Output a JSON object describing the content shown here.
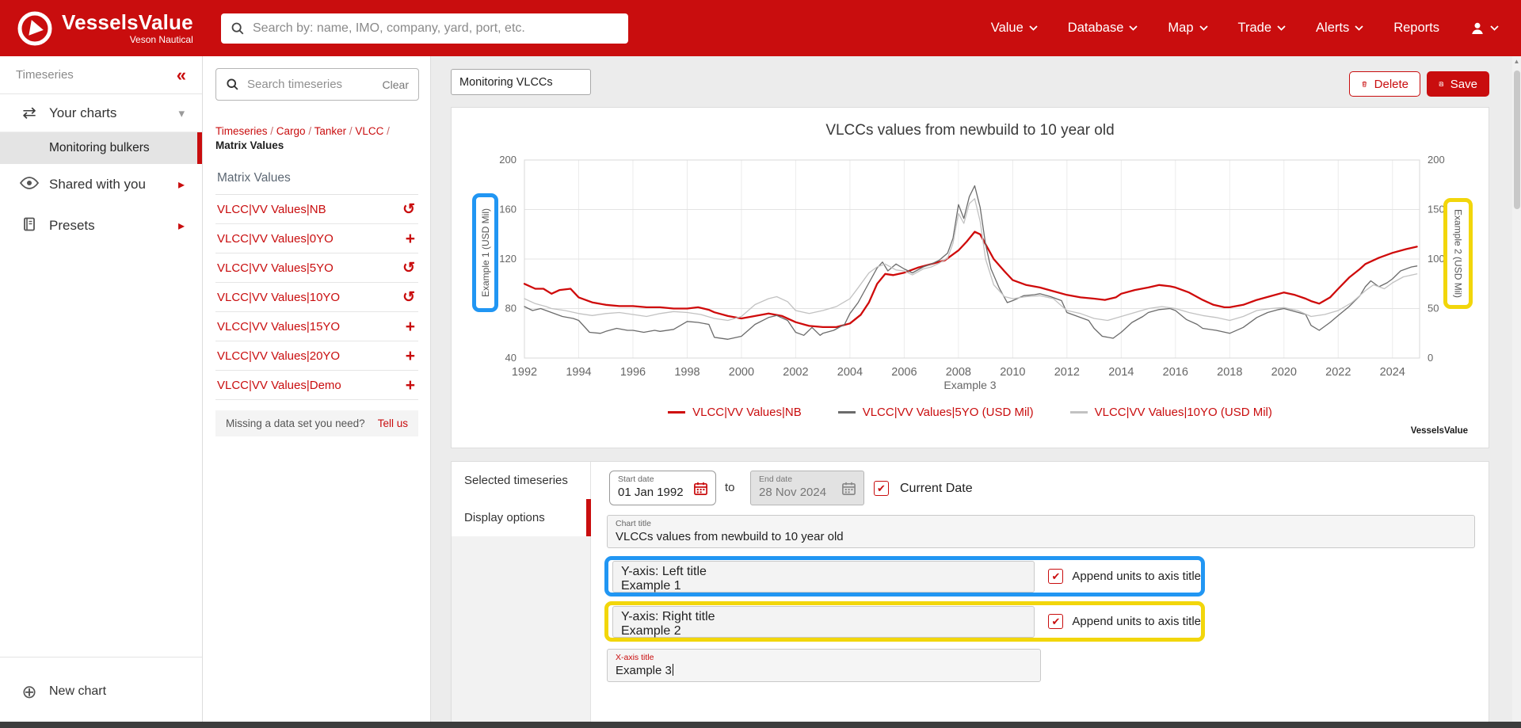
{
  "navbar": {
    "logo_title": "VesselsValue",
    "logo_subtitle": "Veson Nautical",
    "search_placeholder": "Search by: name, IMO, company, yard, port, etc.",
    "items": [
      {
        "label": "Value",
        "chevron": true
      },
      {
        "label": "Database",
        "chevron": true
      },
      {
        "label": "Map",
        "chevron": true
      },
      {
        "label": "Trade",
        "chevron": true
      },
      {
        "label": "Alerts",
        "chevron": true
      },
      {
        "label": "Reports",
        "chevron": false
      }
    ]
  },
  "sidebar": {
    "header": "Timeseries",
    "collapse_glyph": "«",
    "your_charts": "Your charts",
    "selected_chart": "Monitoring bulkers",
    "shared_with_you": "Shared with you",
    "presets": "Presets",
    "new_chart": "New chart",
    "new_chart_glyph": "⊕",
    "swap_glyph": "⇄",
    "caret_down": "▾",
    "caret_right": "▸"
  },
  "series_panel": {
    "search_placeholder": "Search timeseries",
    "clear_label": "Clear",
    "breadcrumb": [
      "Timeseries",
      "Cargo",
      "Tanker",
      "VLCC"
    ],
    "breadcrumb_current": "Matrix Values",
    "group_label": "Matrix Values",
    "items": [
      {
        "label": "VLCC|VV Values|NB",
        "action": "restore"
      },
      {
        "label": "VLCC|VV Values|0YO",
        "action": "add"
      },
      {
        "label": "VLCC|VV Values|5YO",
        "action": "restore"
      },
      {
        "label": "VLCC|VV Values|10YO",
        "action": "restore"
      },
      {
        "label": "VLCC|VV Values|15YO",
        "action": "add"
      },
      {
        "label": "VLCC|VV Values|20YO",
        "action": "add"
      },
      {
        "label": "VLCC|VV Values|Demo",
        "action": "add"
      }
    ],
    "restore_glyph": "↺",
    "add_glyph": "+",
    "missing_text": "Missing a data set you need?",
    "tell_us": "Tell us"
  },
  "toolbar": {
    "chart_name": "Monitoring VLCCs",
    "delete_label": "Delete",
    "save_label": "Save"
  },
  "chart_card": {
    "watermark": "VesselsValue"
  },
  "chart_data": {
    "type": "line",
    "title": "VLCCs values from newbuild to 10 year old",
    "xlabel": "Example 3",
    "ylabel_left": "Example 1 (USD Mil)",
    "ylabel_right": "Example 2 (USD Mil)",
    "x_range": [
      1992,
      2025
    ],
    "x_ticks": [
      1992,
      1994,
      1996,
      1998,
      2000,
      2002,
      2004,
      2006,
      2008,
      2010,
      2012,
      2014,
      2016,
      2018,
      2020,
      2022,
      2024
    ],
    "left_range": [
      40,
      200
    ],
    "left_ticks": [
      40,
      80,
      120,
      160,
      200
    ],
    "right_range": [
      0,
      200
    ],
    "right_ticks": [
      0,
      50,
      100,
      150,
      200
    ],
    "grid": true,
    "legend_position": "bottom",
    "series": [
      {
        "name": "VLCC|VV Values|NB",
        "color": "#cf0a0a",
        "width": 2.3,
        "axis": "left",
        "points": [
          [
            1992,
            100
          ],
          [
            1992.4,
            96
          ],
          [
            1992.7,
            96
          ],
          [
            1993,
            92
          ],
          [
            1993.3,
            95
          ],
          [
            1993.7,
            96
          ],
          [
            1994,
            89
          ],
          [
            1994.5,
            85
          ],
          [
            1995,
            83
          ],
          [
            1995.5,
            82
          ],
          [
            1996,
            82
          ],
          [
            1996.5,
            81
          ],
          [
            1997,
            81
          ],
          [
            1997.5,
            80
          ],
          [
            1998,
            80
          ],
          [
            1998.4,
            81
          ],
          [
            1998.8,
            79
          ],
          [
            1999,
            77
          ],
          [
            1999.5,
            74
          ],
          [
            2000,
            72
          ],
          [
            2000.5,
            74
          ],
          [
            2001,
            76
          ],
          [
            2001.5,
            74
          ],
          [
            2002,
            69
          ],
          [
            2002.5,
            66
          ],
          [
            2003,
            65
          ],
          [
            2003.5,
            65
          ],
          [
            2004,
            68
          ],
          [
            2004.4,
            75
          ],
          [
            2004.7,
            85
          ],
          [
            2005,
            100
          ],
          [
            2005.3,
            108
          ],
          [
            2005.6,
            107
          ],
          [
            2006,
            109
          ],
          [
            2006.5,
            113
          ],
          [
            2007,
            116
          ],
          [
            2007.5,
            119
          ],
          [
            2008,
            127
          ],
          [
            2008.3,
            134
          ],
          [
            2008.6,
            142
          ],
          [
            2008.8,
            140
          ],
          [
            2009,
            132
          ],
          [
            2009.3,
            120
          ],
          [
            2009.7,
            110
          ],
          [
            2010,
            103
          ],
          [
            2010.5,
            99
          ],
          [
            2011,
            97
          ],
          [
            2011.5,
            94
          ],
          [
            2012,
            91
          ],
          [
            2012.5,
            89
          ],
          [
            2013,
            88
          ],
          [
            2013.4,
            87
          ],
          [
            2013.8,
            89
          ],
          [
            2014,
            92
          ],
          [
            2014.5,
            95
          ],
          [
            2015,
            97
          ],
          [
            2015.4,
            99
          ],
          [
            2015.8,
            98
          ],
          [
            2016,
            97
          ],
          [
            2016.5,
            93
          ],
          [
            2017,
            87
          ],
          [
            2017.4,
            83
          ],
          [
            2017.8,
            81
          ],
          [
            2018,
            81
          ],
          [
            2018.5,
            83
          ],
          [
            2019,
            87
          ],
          [
            2019.5,
            90
          ],
          [
            2020,
            93
          ],
          [
            2020.4,
            91
          ],
          [
            2020.8,
            88
          ],
          [
            2021,
            86
          ],
          [
            2021.3,
            84
          ],
          [
            2021.7,
            89
          ],
          [
            2022,
            96
          ],
          [
            2022.4,
            105
          ],
          [
            2022.8,
            112
          ],
          [
            2023,
            116
          ],
          [
            2023.5,
            121
          ],
          [
            2024,
            125
          ],
          [
            2024.5,
            128
          ],
          [
            2024.9,
            130
          ]
        ]
      },
      {
        "name": "VLCC|VV Values|5YO (USD Mil)",
        "color": "#6b6b6b",
        "width": 1.3,
        "axis": "right",
        "points": [
          [
            1992,
            52
          ],
          [
            1992.3,
            48
          ],
          [
            1992.6,
            50
          ],
          [
            1993,
            46
          ],
          [
            1993.4,
            42
          ],
          [
            1993.8,
            40
          ],
          [
            1994,
            38
          ],
          [
            1994.4,
            26
          ],
          [
            1994.8,
            25
          ],
          [
            1995,
            27
          ],
          [
            1995.4,
            30
          ],
          [
            1995.8,
            28
          ],
          [
            1996,
            28
          ],
          [
            1996.4,
            26
          ],
          [
            1996.8,
            28
          ],
          [
            1997,
            27
          ],
          [
            1997.5,
            29
          ],
          [
            1998,
            37
          ],
          [
            1998.4,
            36
          ],
          [
            1998.8,
            34
          ],
          [
            1999,
            21
          ],
          [
            1999.5,
            19
          ],
          [
            2000,
            22
          ],
          [
            2000.5,
            34
          ],
          [
            2001,
            41
          ],
          [
            2001.3,
            43
          ],
          [
            2001.7,
            38
          ],
          [
            2002,
            26
          ],
          [
            2002.3,
            23
          ],
          [
            2002.6,
            31
          ],
          [
            2002.9,
            23
          ],
          [
            2003,
            25
          ],
          [
            2003.4,
            28
          ],
          [
            2003.8,
            34
          ],
          [
            2004,
            45
          ],
          [
            2004.3,
            56
          ],
          [
            2004.7,
            76
          ],
          [
            2005,
            91
          ],
          [
            2005.2,
            97
          ],
          [
            2005.4,
            88
          ],
          [
            2005.7,
            95
          ],
          [
            2006,
            90
          ],
          [
            2006.3,
            86
          ],
          [
            2006.7,
            92
          ],
          [
            2007,
            95
          ],
          [
            2007.3,
            99
          ],
          [
            2007.6,
            106
          ],
          [
            2007.8,
            121
          ],
          [
            2008,
            155
          ],
          [
            2008.2,
            141
          ],
          [
            2008.4,
            163
          ],
          [
            2008.6,
            174
          ],
          [
            2008.8,
            152
          ],
          [
            2009,
            115
          ],
          [
            2009.2,
            90
          ],
          [
            2009.5,
            71
          ],
          [
            2009.8,
            56
          ],
          [
            2010,
            58
          ],
          [
            2010.4,
            63
          ],
          [
            2010.8,
            64
          ],
          [
            2011,
            65
          ],
          [
            2011.4,
            62
          ],
          [
            2011.8,
            58
          ],
          [
            2012,
            46
          ],
          [
            2012.4,
            42
          ],
          [
            2012.8,
            38
          ],
          [
            2013,
            30
          ],
          [
            2013.3,
            22
          ],
          [
            2013.7,
            20
          ],
          [
            2014,
            26
          ],
          [
            2014.4,
            36
          ],
          [
            2014.8,
            42
          ],
          [
            2015,
            46
          ],
          [
            2015.4,
            49
          ],
          [
            2015.8,
            50
          ],
          [
            2016,
            48
          ],
          [
            2016.4,
            39
          ],
          [
            2016.8,
            34
          ],
          [
            2017,
            30
          ],
          [
            2017.5,
            28
          ],
          [
            2018,
            25
          ],
          [
            2018.5,
            31
          ],
          [
            2019,
            41
          ],
          [
            2019.4,
            46
          ],
          [
            2019.8,
            49
          ],
          [
            2020,
            50
          ],
          [
            2020.4,
            47
          ],
          [
            2020.8,
            44
          ],
          [
            2021,
            33
          ],
          [
            2021.3,
            28
          ],
          [
            2021.7,
            36
          ],
          [
            2022,
            43
          ],
          [
            2022.4,
            52
          ],
          [
            2022.8,
            63
          ],
          [
            2023,
            72
          ],
          [
            2023.2,
            78
          ],
          [
            2023.5,
            72
          ],
          [
            2023.8,
            76
          ],
          [
            2024,
            80
          ],
          [
            2024.3,
            88
          ],
          [
            2024.7,
            92
          ],
          [
            2024.9,
            93
          ]
        ]
      },
      {
        "name": "VLCC|VV Values|10YO (USD Mil)",
        "color": "#c2c2c2",
        "width": 1.3,
        "axis": "right",
        "points": [
          [
            1992,
            60
          ],
          [
            1992.4,
            55
          ],
          [
            1992.8,
            52
          ],
          [
            1993,
            50
          ],
          [
            1993.5,
            48
          ],
          [
            1994,
            45
          ],
          [
            1994.5,
            43
          ],
          [
            1995,
            45
          ],
          [
            1995.5,
            46
          ],
          [
            1996,
            44
          ],
          [
            1996.5,
            42
          ],
          [
            1997,
            45
          ],
          [
            1997.5,
            47
          ],
          [
            1998,
            46
          ],
          [
            1998.5,
            44
          ],
          [
            1999,
            40
          ],
          [
            1999.5,
            38
          ],
          [
            2000,
            42
          ],
          [
            2000.5,
            54
          ],
          [
            2001,
            60
          ],
          [
            2001.3,
            62
          ],
          [
            2001.7,
            57
          ],
          [
            2002,
            48
          ],
          [
            2002.5,
            45
          ],
          [
            2003,
            48
          ],
          [
            2003.5,
            52
          ],
          [
            2004,
            60
          ],
          [
            2004.3,
            71
          ],
          [
            2004.7,
            86
          ],
          [
            2005,
            92
          ],
          [
            2005.3,
            95
          ],
          [
            2005.7,
            89
          ],
          [
            2006,
            88
          ],
          [
            2006.3,
            84
          ],
          [
            2006.7,
            90
          ],
          [
            2007,
            92
          ],
          [
            2007.3,
            96
          ],
          [
            2007.6,
            101
          ],
          [
            2007.8,
            116
          ],
          [
            2008,
            146
          ],
          [
            2008.2,
            136
          ],
          [
            2008.4,
            156
          ],
          [
            2008.6,
            161
          ],
          [
            2008.8,
            138
          ],
          [
            2009,
            100
          ],
          [
            2009.3,
            74
          ],
          [
            2009.7,
            62
          ],
          [
            2010,
            60
          ],
          [
            2010.5,
            62
          ],
          [
            2011,
            63
          ],
          [
            2011.5,
            60
          ],
          [
            2012,
            48
          ],
          [
            2012.5,
            45
          ],
          [
            2013,
            40
          ],
          [
            2013.5,
            38
          ],
          [
            2014,
            42
          ],
          [
            2014.5,
            46
          ],
          [
            2015,
            50
          ],
          [
            2015.5,
            52
          ],
          [
            2016,
            50
          ],
          [
            2016.5,
            46
          ],
          [
            2017,
            43
          ],
          [
            2017.5,
            41
          ],
          [
            2018,
            38
          ],
          [
            2018.5,
            42
          ],
          [
            2019,
            48
          ],
          [
            2019.5,
            50
          ],
          [
            2020,
            51
          ],
          [
            2020.5,
            48
          ],
          [
            2021,
            42
          ],
          [
            2021.5,
            44
          ],
          [
            2022,
            48
          ],
          [
            2022.5,
            56
          ],
          [
            2023,
            68
          ],
          [
            2023.3,
            74
          ],
          [
            2023.7,
            70
          ],
          [
            2024,
            76
          ],
          [
            2024.4,
            82
          ],
          [
            2024.9,
            85
          ]
        ]
      }
    ]
  },
  "form": {
    "tabs": [
      "Selected timeseries",
      "Display options"
    ],
    "active_tab": "Display options",
    "start": {
      "label": "Start date",
      "value": "01 Jan 1992"
    },
    "to_label": "to",
    "end": {
      "label": "End date",
      "value": "28 Nov 2024"
    },
    "current_date_label": "Current Date",
    "chart_title": {
      "label": "Chart title",
      "value": "VLCCs values from newbuild to 10 year old"
    },
    "y_left": {
      "label": "Y-axis: Left title",
      "value": "Example 1"
    },
    "y_right": {
      "label": "Y-axis: Right title",
      "value": "Example 2"
    },
    "x_axis": {
      "label": "X-axis title",
      "value": "Example 3"
    },
    "append_units_label": "Append units to axis title",
    "check_glyph": "✔"
  },
  "colors": {
    "brand_red": "#c90d0e",
    "highlight_blue": "#2196f3",
    "highlight_yellow": "#f2d60b",
    "series_nb": "#cf0a0a",
    "series_5yo": "#6b6b6b",
    "series_10yo": "#c2c2c2"
  }
}
